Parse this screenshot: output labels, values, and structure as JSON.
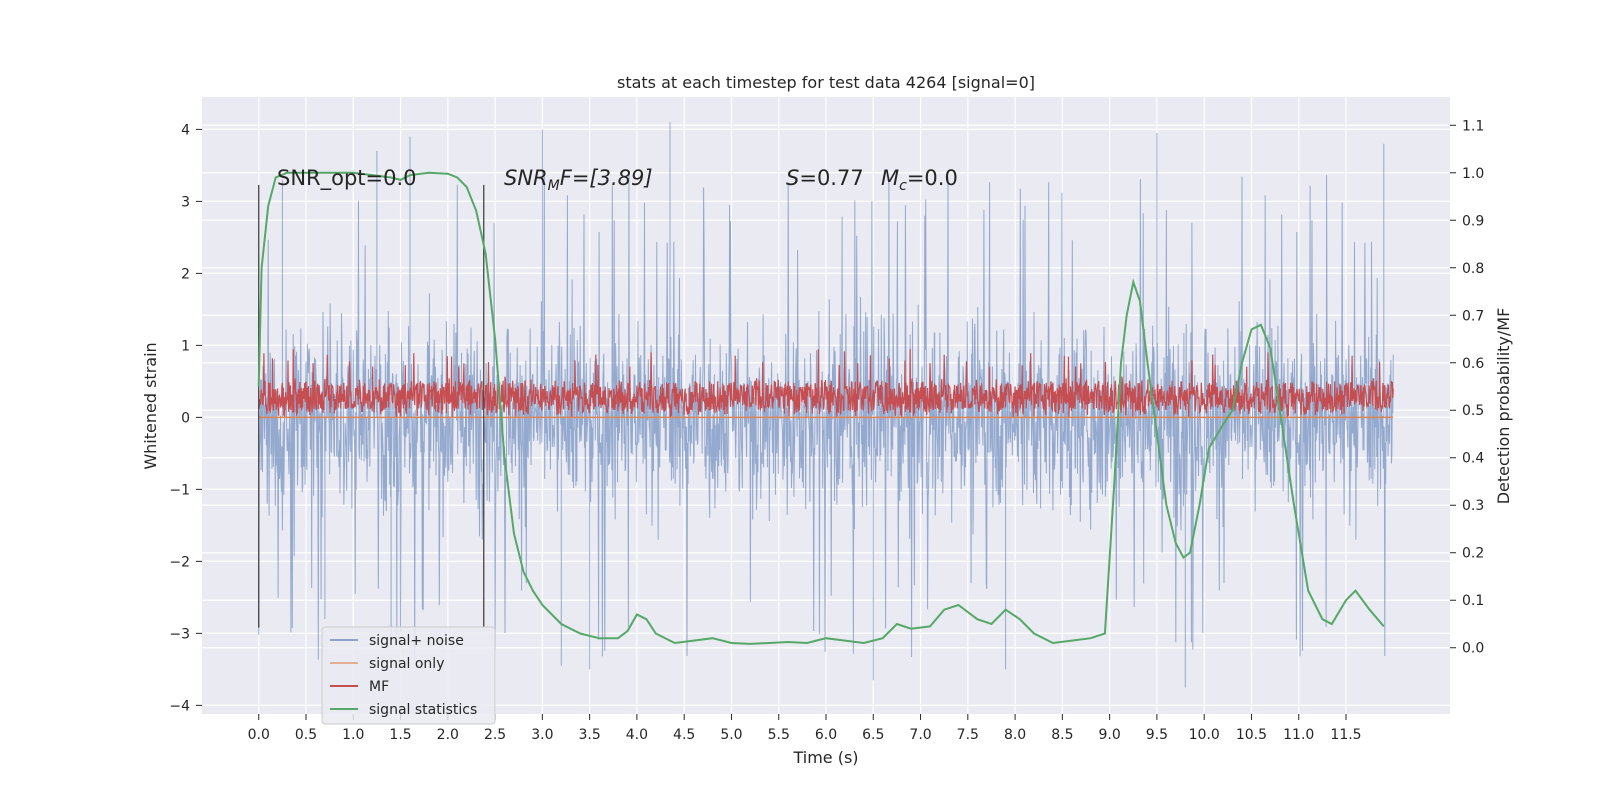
{
  "chart_data": {
    "type": "line",
    "title": "stats at each timestep for test data 4264 [signal=0]",
    "xlabel": "Time (s)",
    "ylabel": "Whitened strain",
    "y2label": "Detection probability/MF",
    "xlim": [
      -0.6,
      12.6
    ],
    "ylim": [
      -4.12,
      4.45
    ],
    "y2lim": [
      -0.1395,
      1.1595
    ],
    "x_ticks": [
      "0.0",
      "0.5",
      "1.0",
      "1.5",
      "2.0",
      "2.5",
      "3.0",
      "3.5",
      "4.0",
      "4.5",
      "5.0",
      "5.5",
      "6.0",
      "6.5",
      "7.0",
      "7.5",
      "8.0",
      "8.5",
      "9.0",
      "9.5",
      "10.0",
      "10.5",
      "11.0",
      "11.5"
    ],
    "y_ticks": [
      "−4",
      "−3",
      "−2",
      "−1",
      "0",
      "1",
      "2",
      "3",
      "4"
    ],
    "y2_ticks": [
      "0.0",
      "0.1",
      "0.2",
      "0.3",
      "0.4",
      "0.5",
      "0.6",
      "0.7",
      "0.8",
      "0.9",
      "1.0",
      "1.1"
    ],
    "grid": true,
    "legend_position": "lower-left",
    "annotations": {
      "snr_opt": "SNR_opt=0.0",
      "snr_mf_italic": "SNR",
      "snr_mf_sub": "M",
      "snr_mf_rest": "F=[3.89]",
      "s_italic": "S",
      "s_rest": "=0.77",
      "mc_italic": "M",
      "mc_sub": "c",
      "mc_rest": "=0.0"
    },
    "vertical_markers": [
      0.0,
      2.38
    ],
    "series": [
      {
        "name": "signal+ noise",
        "color": "#4c72b0",
        "axis": "left",
        "style": "dense noise band",
        "x_range": [
          0.0,
          12.0
        ],
        "core_band": [
          -1.7,
          1.35
        ],
        "typical_band": [
          -2.5,
          2.8
        ],
        "sample_extremes": [
          {
            "x": 0.25,
            "y": 3.3
          },
          {
            "x": 1.25,
            "y": 3.7
          },
          {
            "x": 1.6,
            "y": 3.9
          },
          {
            "x": 3.0,
            "y": 4.0
          },
          {
            "x": 4.35,
            "y": 4.1
          },
          {
            "x": 9.5,
            "y": 3.95
          },
          {
            "x": 11.9,
            "y": 3.8
          },
          {
            "x": 3.2,
            "y": -3.45
          },
          {
            "x": 3.5,
            "y": -3.5
          },
          {
            "x": 6.5,
            "y": -3.65
          },
          {
            "x": 7.9,
            "y": -3.5
          },
          {
            "x": 9.8,
            "y": -3.75
          },
          {
            "x": 1.4,
            "y": -3.1
          },
          {
            "x": 0.7,
            "y": -2.8
          }
        ]
      },
      {
        "name": "signal only",
        "color": "#dd8452",
        "axis": "left",
        "x": [
          0.0,
          12.0
        ],
        "y": [
          0.0,
          0.0
        ]
      },
      {
        "name": "MF",
        "color": "#c44e52",
        "axis": "left",
        "style": "dense noise band",
        "x_range": [
          0.0,
          12.0
        ],
        "base": 0.0,
        "typical_top": [
          0.35,
          0.55
        ],
        "peak": 0.95
      },
      {
        "name": "signal statistics",
        "color": "#55a868",
        "axis": "right",
        "x": [
          0.0,
          0.03,
          0.1,
          0.18,
          0.3,
          0.5,
          1.0,
          1.2,
          1.4,
          1.5,
          1.6,
          1.8,
          2.0,
          2.1,
          2.2,
          2.3,
          2.4,
          2.5,
          2.6,
          2.7,
          2.8,
          2.9,
          3.0,
          3.2,
          3.4,
          3.6,
          3.8,
          3.9,
          4.0,
          4.1,
          4.2,
          4.4,
          4.6,
          4.8,
          5.0,
          5.2,
          5.4,
          5.6,
          5.8,
          6.0,
          6.2,
          6.4,
          6.6,
          6.75,
          6.9,
          7.1,
          7.25,
          7.4,
          7.6,
          7.75,
          7.9,
          8.05,
          8.2,
          8.4,
          8.6,
          8.8,
          8.95,
          9.05,
          9.12,
          9.18,
          9.25,
          9.32,
          9.4,
          9.5,
          9.6,
          9.7,
          9.78,
          9.85,
          9.95,
          10.05,
          10.2,
          10.3,
          10.4,
          10.5,
          10.6,
          10.7,
          10.8,
          10.95,
          11.1,
          11.25,
          11.35,
          11.5,
          11.6,
          11.75,
          11.9
        ],
        "y": [
          0.55,
          0.8,
          0.93,
          0.99,
          1.0,
          1.0,
          1.0,
          0.995,
          0.99,
          0.985,
          0.995,
          1.0,
          0.998,
          0.99,
          0.97,
          0.92,
          0.83,
          0.65,
          0.4,
          0.24,
          0.16,
          0.12,
          0.09,
          0.05,
          0.03,
          0.02,
          0.02,
          0.035,
          0.07,
          0.06,
          0.03,
          0.01,
          0.015,
          0.02,
          0.01,
          0.008,
          0.01,
          0.012,
          0.01,
          0.02,
          0.015,
          0.01,
          0.02,
          0.05,
          0.04,
          0.045,
          0.08,
          0.09,
          0.06,
          0.05,
          0.08,
          0.06,
          0.03,
          0.01,
          0.015,
          0.02,
          0.03,
          0.35,
          0.6,
          0.7,
          0.77,
          0.73,
          0.6,
          0.45,
          0.3,
          0.22,
          0.19,
          0.2,
          0.3,
          0.42,
          0.47,
          0.5,
          0.6,
          0.67,
          0.68,
          0.63,
          0.5,
          0.3,
          0.12,
          0.06,
          0.05,
          0.1,
          0.12,
          0.08,
          0.045
        ]
      }
    ]
  }
}
